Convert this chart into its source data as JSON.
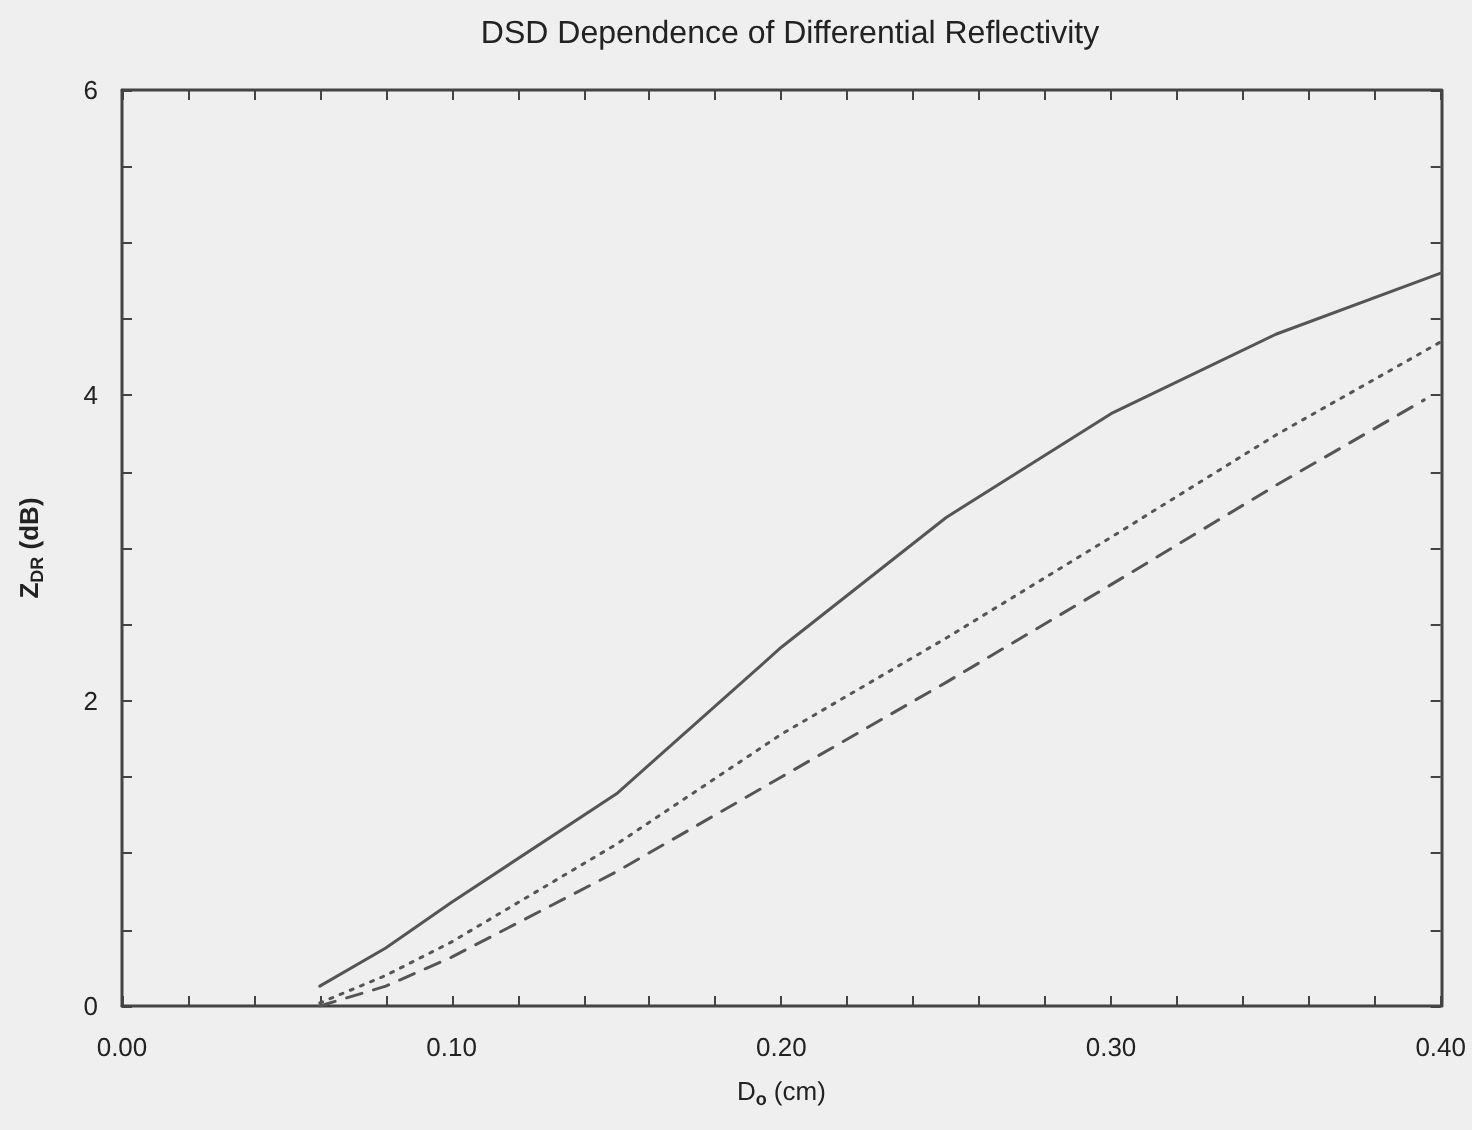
{
  "chart_data": {
    "type": "line",
    "title": "DSD Dependence of Differential Reflectivity",
    "xlabel": "D$_{o}$ (cm)",
    "ylabel": "Z$_{DR}$ (dB)",
    "x": [
      0.06,
      0.08,
      0.1,
      0.15,
      0.2,
      0.25,
      0.3,
      0.35,
      0.4
    ],
    "series": [
      {
        "color": "#555555",
        "line_style": "solid",
        "values": [
          0.13,
          0.38,
          0.68,
          1.39,
          2.35,
          3.2,
          3.88,
          4.4,
          4.8
        ]
      },
      {
        "color": "#555555",
        "line_style": "dotted",
        "values": [
          0.02,
          0.2,
          0.42,
          1.06,
          1.78,
          2.41,
          3.07,
          3.74,
          4.35
        ]
      },
      {
        "color": "#555555",
        "line_style": "dashed",
        "x": [
          0.06,
          0.08,
          0.1,
          0.15,
          0.2,
          0.25,
          0.3,
          0.35,
          0.395
        ],
        "values": [
          0.0,
          0.13,
          0.32,
          0.88,
          1.5,
          2.12,
          2.76,
          3.41,
          3.97
        ]
      }
    ],
    "xlim": [
      0,
      0.4
    ],
    "ylim": [
      0,
      6
    ],
    "xticks": [
      {
        "value": 0,
        "label": "0.00"
      },
      {
        "value": 0.1,
        "label": "0.10"
      },
      {
        "value": 0.2,
        "label": "0.20"
      },
      {
        "value": 0.3,
        "label": "0.30"
      },
      {
        "value": 0.4,
        "label": "0.40"
      },
      {
        "value": 0.02,
        "label": null
      },
      {
        "value": 0.04,
        "label": null
      },
      {
        "value": 0.06,
        "label": null
      },
      {
        "value": 0.08,
        "label": null
      },
      {
        "value": 0.12,
        "label": null
      },
      {
        "value": 0.14,
        "label": null
      },
      {
        "value": 0.16,
        "label": null
      },
      {
        "value": 0.18,
        "label": null
      },
      {
        "value": 0.22,
        "label": null
      },
      {
        "value": 0.24,
        "label": null
      },
      {
        "value": 0.26,
        "label": null
      },
      {
        "value": 0.28,
        "label": null
      },
      {
        "value": 0.32,
        "label": null
      },
      {
        "value": 0.34,
        "label": null
      },
      {
        "value": 0.36,
        "label": null
      },
      {
        "value": 0.38,
        "label": null
      }
    ],
    "yticks": [
      0,
      2,
      4,
      6,
      {
        "value": 0.5,
        "label": null
      },
      {
        "value": 1,
        "label": null
      },
      {
        "value": 1.5,
        "label": null
      },
      {
        "value": 2.5,
        "label": null
      },
      {
        "value": 3,
        "label": null
      },
      {
        "value": 3.5,
        "label": null
      },
      {
        "value": 4.5,
        "label": null
      },
      {
        "value": 5,
        "label": null
      },
      {
        "value": 5.5,
        "label": null
      }
    ],
    "grid": false,
    "marker": "none"
  }
}
